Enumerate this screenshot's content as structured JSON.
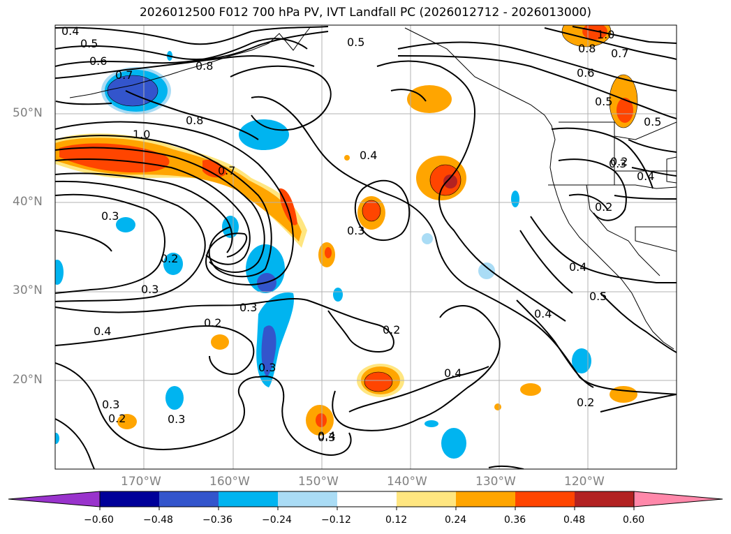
{
  "title": "2026012500 F012 700 hPa PV, IVT Landfall PC (2026012712 - 2026013000)",
  "lat_labels": [
    "50°N",
    "40°N",
    "30°N",
    "20°N"
  ],
  "lon_labels": [
    "170°W",
    "160°W",
    "150°W",
    "140°W",
    "130°W",
    "120°W"
  ],
  "colorbar": {
    "ticks": [
      "−0.60",
      "−0.48",
      "−0.36",
      "−0.24",
      "−0.12",
      "0.12",
      "0.24",
      "0.36",
      "0.48",
      "0.60"
    ],
    "colors": [
      "#9933cc",
      "#000099",
      "#3355cc",
      "#00b4f0",
      "#aadcf5",
      "#ffffff",
      "#ffe680",
      "#ffa500",
      "#ff4500",
      "#b22222",
      "#ff88aa"
    ]
  },
  "contour_labels": [
    "0.4",
    "0.5",
    "0.6",
    "0.7",
    "0.8",
    "0.5",
    "1.0",
    "0.8",
    "0.7",
    "0.6",
    "0.5",
    "0.5",
    "0.8",
    "1.0",
    "0.7",
    "0.4",
    "0.3",
    "0.3",
    "0.4",
    "0.2",
    "0.3",
    "0.2",
    "0.3",
    "0.4",
    "0.2",
    "0.3",
    "0.3",
    "0.2",
    "0.2",
    "0.3",
    "0.4",
    "0.4",
    "0.5",
    "0.2",
    "0.4",
    "0.3",
    "0.4",
    "0.2",
    "0.3"
  ]
}
